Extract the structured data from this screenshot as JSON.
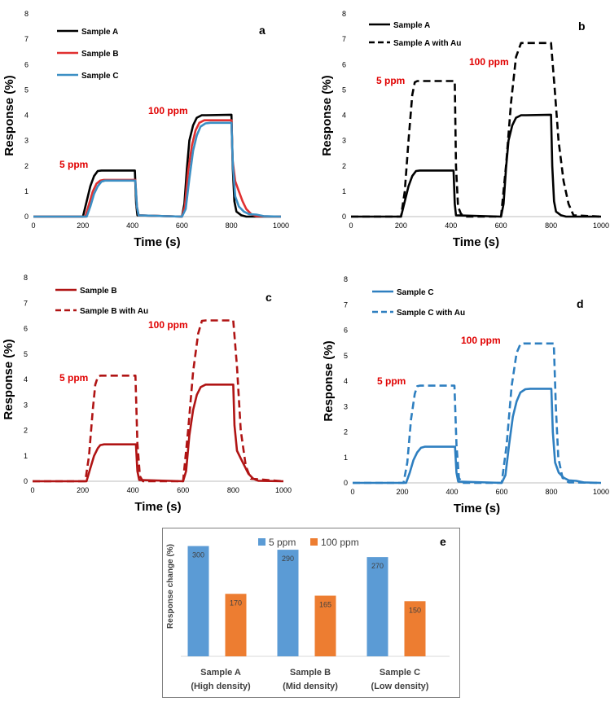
{
  "chart_data": [
    {
      "type": "line",
      "panel": "a",
      "xlabel": "Time (s)",
      "ylabel": "Response (%)",
      "xlim": [
        0,
        1000
      ],
      "ylim": [
        0,
        8
      ],
      "xticks": [
        "0",
        "200",
        "400",
        "600",
        "800",
        "1000"
      ],
      "yticks": [
        "0",
        "1",
        "2",
        "3",
        "4",
        "5",
        "6",
        "7",
        "8"
      ],
      "annotations": [
        "5 ppm",
        "100 ppm"
      ],
      "series": [
        {
          "name": "Sample A",
          "color": "#000000",
          "dash": false,
          "x": [
            0,
            200,
            215,
            230,
            245,
            260,
            275,
            400,
            410,
            415,
            420,
            600,
            610,
            620,
            630,
            645,
            660,
            680,
            700,
            800,
            805,
            812,
            820,
            840,
            860,
            1000
          ],
          "y": [
            0,
            0,
            0.6,
            1.2,
            1.6,
            1.8,
            1.82,
            1.82,
            1.82,
            0.5,
            0.05,
            0,
            0.5,
            1.9,
            3.0,
            3.6,
            3.9,
            4.0,
            4.0,
            4.02,
            2.0,
            0.6,
            0.2,
            0.05,
            0,
            0
          ]
        },
        {
          "name": "Sample B",
          "color": "#e03030",
          "dash": false,
          "x": [
            0,
            210,
            225,
            240,
            255,
            270,
            285,
            400,
            412,
            418,
            425,
            600,
            612,
            625,
            640,
            655,
            670,
            690,
            710,
            800,
            805,
            815,
            830,
            845,
            860,
            880,
            900,
            1000
          ],
          "y": [
            0,
            0,
            0.5,
            1.0,
            1.3,
            1.42,
            1.45,
            1.45,
            1.45,
            0.4,
            0.05,
            0,
            0.4,
            1.8,
            2.8,
            3.4,
            3.7,
            3.8,
            3.8,
            3.8,
            2.2,
            1.4,
            1.0,
            0.6,
            0.3,
            0.1,
            0.02,
            0
          ]
        },
        {
          "name": "Sample C",
          "color": "#3b8fc4",
          "dash": false,
          "x": [
            0,
            215,
            230,
            245,
            260,
            275,
            290,
            400,
            412,
            418,
            425,
            600,
            615,
            630,
            645,
            660,
            675,
            695,
            715,
            800,
            806,
            815,
            830,
            850,
            870,
            900,
            930,
            1000
          ],
          "y": [
            0,
            0,
            0.4,
            0.9,
            1.2,
            1.38,
            1.42,
            1.42,
            1.42,
            0.4,
            0.05,
            0,
            0.3,
            1.5,
            2.6,
            3.2,
            3.55,
            3.68,
            3.7,
            3.7,
            2.0,
            0.8,
            0.4,
            0.2,
            0.1,
            0.08,
            0.02,
            0
          ]
        }
      ]
    },
    {
      "type": "line",
      "panel": "b",
      "xlabel": "Time (s)",
      "ylabel": "Response (%)",
      "xlim": [
        0,
        1000
      ],
      "ylim": [
        0,
        8
      ],
      "xticks": [
        "0",
        "200",
        "400",
        "600",
        "800",
        "1000"
      ],
      "yticks": [
        "0",
        "1",
        "2",
        "3",
        "4",
        "5",
        "6",
        "7",
        "8"
      ],
      "annotations": [
        "5 ppm",
        "100 ppm"
      ],
      "series": [
        {
          "name": "Sample A",
          "color": "#000000",
          "dash": false,
          "x": [
            0,
            200,
            215,
            230,
            245,
            260,
            275,
            400,
            410,
            415,
            420,
            600,
            610,
            620,
            630,
            645,
            660,
            680,
            700,
            800,
            805,
            812,
            820,
            840,
            860,
            1000
          ],
          "y": [
            0,
            0,
            0.6,
            1.2,
            1.6,
            1.8,
            1.82,
            1.82,
            1.82,
            0.5,
            0.05,
            0,
            0.5,
            1.9,
            3.0,
            3.6,
            3.9,
            4.0,
            4.0,
            4.02,
            2.0,
            0.6,
            0.2,
            0.05,
            0,
            0
          ]
        },
        {
          "name": "Sample A with Au",
          "color": "#000000",
          "dash": true,
          "x": [
            0,
            200,
            215,
            230,
            245,
            255,
            265,
            415,
            420,
            428,
            440,
            460,
            600,
            620,
            640,
            660,
            680,
            690,
            800,
            815,
            830,
            850,
            870,
            890,
            1000
          ],
          "y": [
            0,
            0,
            1.0,
            3.0,
            4.8,
            5.3,
            5.35,
            5.35,
            2.0,
            0.4,
            0.1,
            0,
            0,
            2.0,
            4.5,
            6.3,
            6.85,
            6.85,
            6.85,
            5.0,
            3.0,
            1.4,
            0.5,
            0.05,
            0
          ]
        }
      ]
    },
    {
      "type": "line",
      "panel": "c",
      "xlabel": "Time (s)",
      "ylabel": "Response (%)",
      "xlim": [
        0,
        1000
      ],
      "ylim": [
        0,
        8
      ],
      "xticks": [
        "0",
        "200",
        "400",
        "600",
        "800",
        "1000"
      ],
      "yticks": [
        "0",
        "1",
        "2",
        "3",
        "4",
        "5",
        "6",
        "7",
        "8"
      ],
      "annotations": [
        "5 ppm",
        "100 ppm"
      ],
      "series": [
        {
          "name": "Sample B",
          "color": "#b01414",
          "dash": false,
          "x": [
            0,
            215,
            230,
            245,
            260,
            270,
            285,
            400,
            412,
            418,
            425,
            600,
            612,
            625,
            640,
            655,
            670,
            690,
            710,
            800,
            805,
            815,
            830,
            845,
            860,
            880,
            900,
            1000
          ],
          "y": [
            0,
            0,
            0.5,
            1.0,
            1.3,
            1.42,
            1.45,
            1.45,
            1.45,
            0.4,
            0.05,
            0,
            0.4,
            1.8,
            2.8,
            3.4,
            3.7,
            3.8,
            3.8,
            3.8,
            2.2,
            1.2,
            0.9,
            0.6,
            0.3,
            0.1,
            0.02,
            0
          ]
        },
        {
          "name": "Sample B with Au",
          "color": "#b01414",
          "dash": true,
          "x": [
            0,
            210,
            225,
            240,
            250,
            260,
            270,
            410,
            418,
            428,
            440,
            600,
            620,
            640,
            660,
            675,
            690,
            800,
            815,
            830,
            850,
            870,
            1000
          ],
          "y": [
            0,
            0,
            1.0,
            2.8,
            3.8,
            4.1,
            4.15,
            4.15,
            1.5,
            0.2,
            0,
            0,
            2.0,
            4.3,
            5.8,
            6.3,
            6.32,
            6.32,
            4.5,
            2.0,
            0.6,
            0.1,
            0
          ]
        }
      ]
    },
    {
      "type": "line",
      "panel": "d",
      "xlabel": "Time (s)",
      "ylabel": "Response (%)",
      "xlim": [
        0,
        1000
      ],
      "ylim": [
        0,
        8
      ],
      "xticks": [
        "0",
        "200",
        "400",
        "600",
        "800",
        "1000"
      ],
      "yticks": [
        "0",
        "1",
        "2",
        "3",
        "4",
        "5",
        "6",
        "7",
        "8"
      ],
      "annotations": [
        "5 ppm",
        "100 ppm"
      ],
      "series": [
        {
          "name": "Sample C",
          "color": "#2e7fc0",
          "dash": false,
          "x": [
            0,
            215,
            230,
            245,
            260,
            275,
            290,
            405,
            412,
            418,
            425,
            600,
            615,
            630,
            645,
            660,
            675,
            695,
            715,
            800,
            806,
            815,
            830,
            850,
            870,
            900,
            930,
            1000
          ],
          "y": [
            0,
            0,
            0.4,
            0.9,
            1.2,
            1.38,
            1.42,
            1.42,
            1.42,
            0.4,
            0.05,
            0,
            0.3,
            1.5,
            2.6,
            3.2,
            3.55,
            3.68,
            3.7,
            3.7,
            2.0,
            0.8,
            0.4,
            0.2,
            0.1,
            0.08,
            0.02,
            0
          ]
        },
        {
          "name": "Sample C with Au",
          "color": "#2e7fc0",
          "dash": true,
          "x": [
            0,
            205,
            220,
            235,
            250,
            260,
            270,
            410,
            418,
            428,
            440,
            600,
            620,
            640,
            660,
            675,
            690,
            810,
            818,
            828,
            845,
            870,
            1000
          ],
          "y": [
            0,
            0,
            0.8,
            2.5,
            3.5,
            3.8,
            3.82,
            3.82,
            1.5,
            0.2,
            0,
            0,
            1.5,
            3.8,
            5.1,
            5.45,
            5.48,
            5.48,
            3.0,
            1.0,
            0.2,
            0.02,
            0
          ]
        }
      ]
    },
    {
      "type": "bar",
      "panel": "e",
      "ylabel": "Response change (%)",
      "ylim": [
        0,
        350
      ],
      "categories": [
        [
          "Sample A",
          "(High density)"
        ],
        [
          "Sample B",
          "(Mid density)"
        ],
        [
          "Sample C",
          "(Low density)"
        ]
      ],
      "series": [
        {
          "name": "5 ppm",
          "color": "#5b9bd5",
          "values": [
            300,
            290,
            270
          ],
          "labels": [
            "300",
            "290",
            "270"
          ]
        },
        {
          "name": "100 ppm",
          "color": "#ed7d31",
          "values": [
            170,
            165,
            150
          ],
          "labels": [
            "170",
            "165",
            "150"
          ]
        }
      ]
    }
  ]
}
